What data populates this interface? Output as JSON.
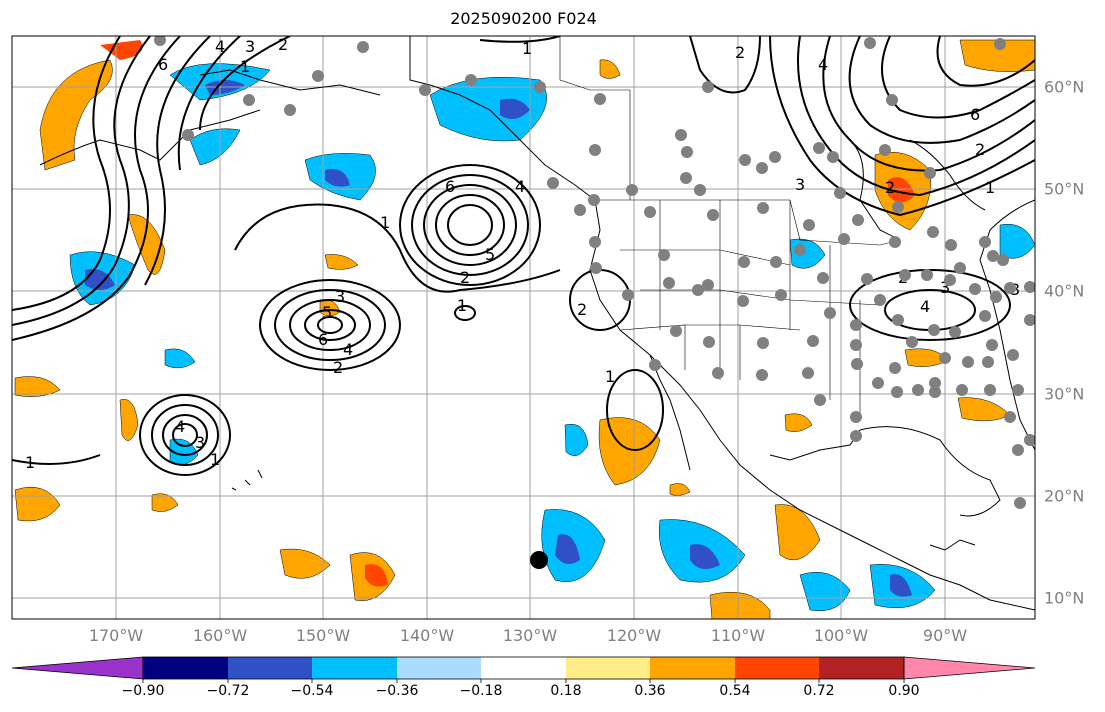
{
  "title": "2025090200 F024",
  "lon_labels": [
    "170°W",
    "160°W",
    "150°W",
    "140°W",
    "130°W",
    "120°W",
    "110°W",
    "100°W",
    "90°W"
  ],
  "lat_labels": [
    "60°N",
    "50°N",
    "40°N",
    "30°N",
    "20°N",
    "10°N"
  ],
  "colorbar": {
    "ticks": [
      "−0.90",
      "−0.72",
      "−0.54",
      "−0.36",
      "−0.18",
      "0.18",
      "0.36",
      "0.54",
      "0.72",
      "0.90"
    ],
    "colors": [
      "#9933cc",
      "#000080",
      "#3050c8",
      "#00bfff",
      "#aaddff",
      "#ffffff",
      "#ffee88",
      "#ffa500",
      "#ff4500",
      "#b22222",
      "#ff88aa"
    ]
  },
  "contour_labels": [
    "1",
    "2",
    "3",
    "4",
    "5",
    "6"
  ],
  "colors": {
    "positive": "#ffa500",
    "negative": "#00bfff",
    "strong_positive": "#ff4500",
    "strong_negative": "#3050c8",
    "grid": "#a0a0a0",
    "station": "#808080"
  }
}
